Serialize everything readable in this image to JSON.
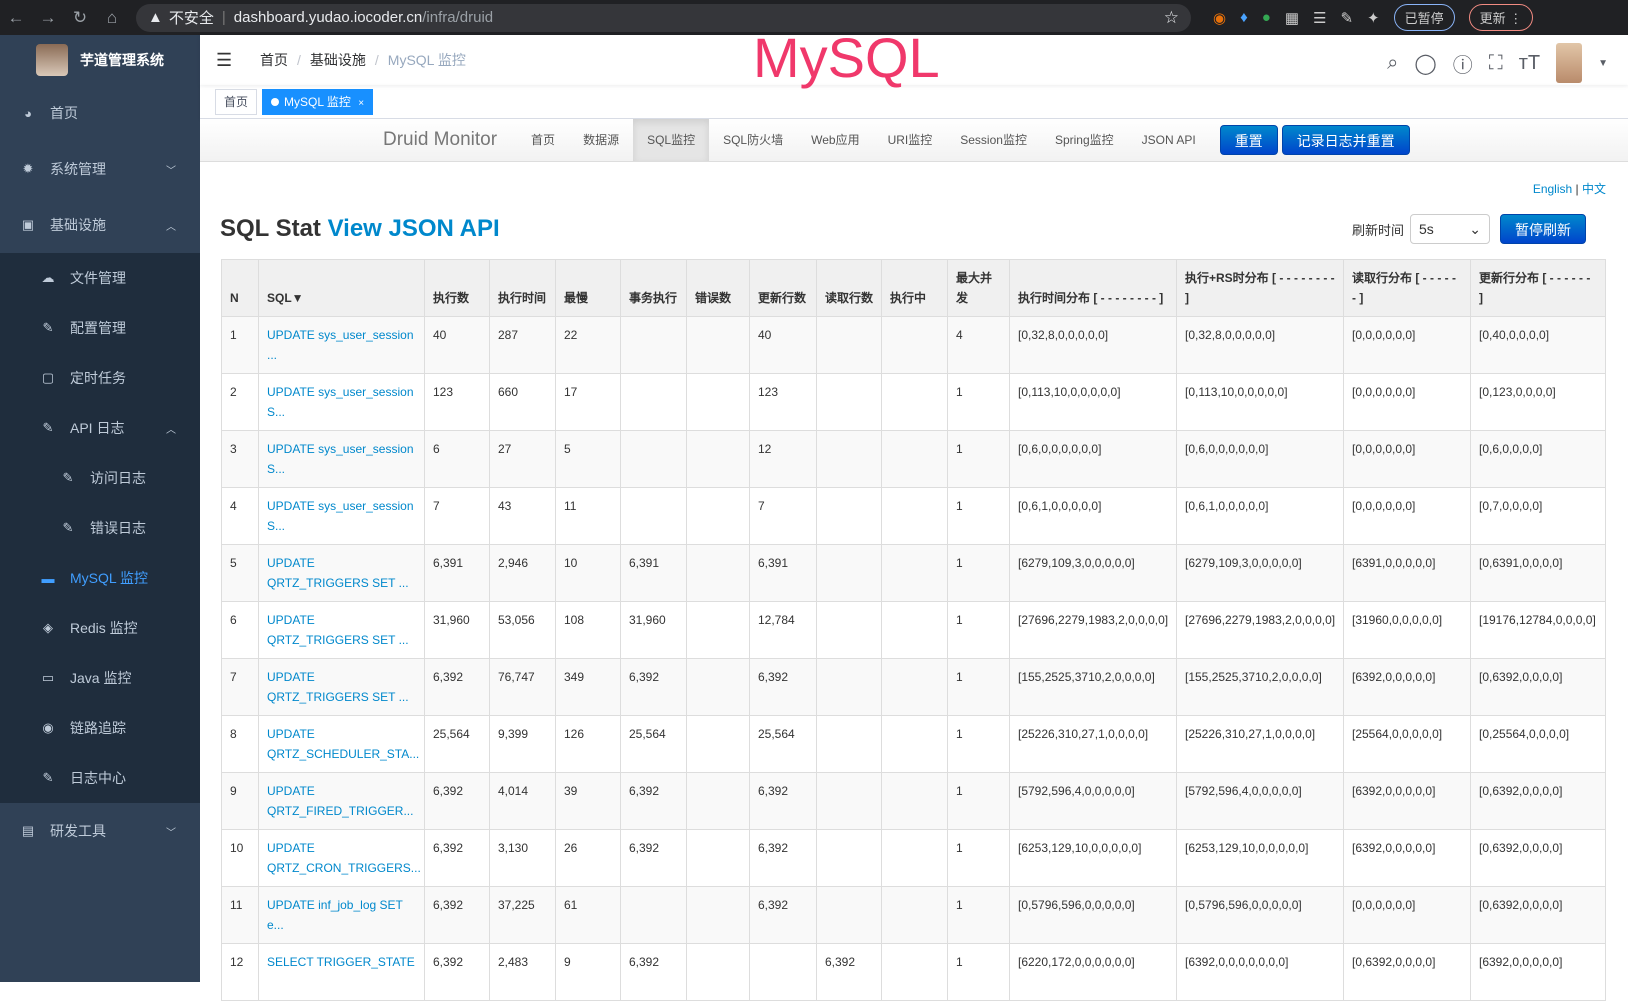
{
  "browser": {
    "insecure": "不安全",
    "url_host": "dashboard.yudao.iocoder.cn",
    "url_path": "/infra/druid",
    "paused": "已暂停",
    "update": "更新"
  },
  "sidebar": {
    "title": "芋道管理系统",
    "items": [
      {
        "label": "首页",
        "icon": "dashboard-icon"
      },
      {
        "label": "系统管理",
        "icon": "gear-icon"
      },
      {
        "label": "基础设施",
        "icon": "monitor-icon"
      },
      {
        "label": "文件管理",
        "icon": "upload-icon"
      },
      {
        "label": "配置管理",
        "icon": "edit-icon"
      },
      {
        "label": "定时任务",
        "icon": "job-icon"
      },
      {
        "label": "API 日志",
        "icon": "log-icon"
      },
      {
        "label": "访问日志",
        "icon": "log-icon"
      },
      {
        "label": "错误日志",
        "icon": "log-icon"
      },
      {
        "label": "MySQL 监控",
        "icon": "database-icon"
      },
      {
        "label": "Redis 监控",
        "icon": "redis-icon"
      },
      {
        "label": "Java 监控",
        "icon": "server-icon"
      },
      {
        "label": "链路追踪",
        "icon": "eye-icon"
      },
      {
        "label": "日志中心",
        "icon": "log-icon"
      },
      {
        "label": "研发工具",
        "icon": "toolbox-icon"
      }
    ]
  },
  "breadcrumb": [
    "首页",
    "基础设施",
    "MySQL 监控"
  ],
  "overlay_title": "MySQL",
  "tags": [
    "首页",
    "MySQL 监控"
  ],
  "druid": {
    "brand": "Druid Monitor",
    "nav": [
      "首页",
      "数据源",
      "SQL监控",
      "SQL防火墙",
      "Web应用",
      "URI监控",
      "Session监控",
      "Spring监控",
      "JSON API"
    ],
    "reset": "重置",
    "log_reset": "记录日志并重置"
  },
  "lang": {
    "en": "English",
    "sep": "|",
    "zh": "中文"
  },
  "heading": {
    "title": "SQL Stat",
    "link": "View JSON API"
  },
  "refresh": {
    "label": "刷新时间",
    "value": "5s",
    "pause": "暂停刷新"
  },
  "table": {
    "headers": [
      "N",
      "SQL▼",
      "执行数",
      "执行时间",
      "最慢",
      "事务执行",
      "错误数",
      "更新行数",
      "读取行数",
      "执行中",
      "最大并发",
      "执行时间分布 [ - - - - - - - - ]",
      "执行+RS时分布 [ - - - - - - - - ]",
      "读取行分布 [ - - - - - - ]",
      "更新行分布 [ - - - - - - ]"
    ],
    "rows": [
      [
        "1",
        "UPDATE sys_user_session ...",
        "40",
        "287",
        "22",
        "",
        "",
        "40",
        "",
        "",
        "4",
        "[0,32,8,0,0,0,0,0]",
        "[0,32,8,0,0,0,0,0]",
        "[0,0,0,0,0,0]",
        "[0,40,0,0,0,0]"
      ],
      [
        "2",
        "UPDATE sys_user_session S...",
        "123",
        "660",
        "17",
        "",
        "",
        "123",
        "",
        "",
        "1",
        "[0,113,10,0,0,0,0,0]",
        "[0,113,10,0,0,0,0,0]",
        "[0,0,0,0,0,0]",
        "[0,123,0,0,0,0]"
      ],
      [
        "3",
        "UPDATE sys_user_session S...",
        "6",
        "27",
        "5",
        "",
        "",
        "12",
        "",
        "",
        "1",
        "[0,6,0,0,0,0,0,0]",
        "[0,6,0,0,0,0,0,0]",
        "[0,0,0,0,0,0]",
        "[0,6,0,0,0,0]"
      ],
      [
        "4",
        "UPDATE sys_user_session S...",
        "7",
        "43",
        "11",
        "",
        "",
        "7",
        "",
        "",
        "1",
        "[0,6,1,0,0,0,0,0]",
        "[0,6,1,0,0,0,0,0]",
        "[0,0,0,0,0,0]",
        "[0,7,0,0,0,0]"
      ],
      [
        "5",
        "UPDATE QRTZ_TRIGGERS SET ...",
        "6,391",
        "2,946",
        "10",
        "6,391",
        "",
        "6,391",
        "",
        "",
        "1",
        "[6279,109,3,0,0,0,0,0]",
        "[6279,109,3,0,0,0,0,0]",
        "[6391,0,0,0,0,0]",
        "[0,6391,0,0,0,0]"
      ],
      [
        "6",
        "UPDATE QRTZ_TRIGGERS SET ...",
        "31,960",
        "53,056",
        "108",
        "31,960",
        "",
        "12,784",
        "",
        "",
        "1",
        "[27696,2279,1983,2,0,0,0,0]",
        "[27696,2279,1983,2,0,0,0,0]",
        "[31960,0,0,0,0,0]",
        "[19176,12784,0,0,0,0]"
      ],
      [
        "7",
        "UPDATE QRTZ_TRIGGERS SET ...",
        "6,392",
        "76,747",
        "349",
        "6,392",
        "",
        "6,392",
        "",
        "",
        "1",
        "[155,2525,3710,2,0,0,0,0]",
        "[155,2525,3710,2,0,0,0,0]",
        "[6392,0,0,0,0,0]",
        "[0,6392,0,0,0,0]"
      ],
      [
        "8",
        "UPDATE QRTZ_SCHEDULER_STA...",
        "25,564",
        "9,399",
        "126",
        "25,564",
        "",
        "25,564",
        "",
        "",
        "1",
        "[25226,310,27,1,0,0,0,0]",
        "[25226,310,27,1,0,0,0,0]",
        "[25564,0,0,0,0,0]",
        "[0,25564,0,0,0,0]"
      ],
      [
        "9",
        "UPDATE QRTZ_FIRED_TRIGGER...",
        "6,392",
        "4,014",
        "39",
        "6,392",
        "",
        "6,392",
        "",
        "",
        "1",
        "[5792,596,4,0,0,0,0,0]",
        "[5792,596,4,0,0,0,0,0]",
        "[6392,0,0,0,0,0]",
        "[0,6392,0,0,0,0]"
      ],
      [
        "10",
        "UPDATE QRTZ_CRON_TRIGGERS...",
        "6,392",
        "3,130",
        "26",
        "6,392",
        "",
        "6,392",
        "",
        "",
        "1",
        "[6253,129,10,0,0,0,0,0]",
        "[6253,129,10,0,0,0,0,0]",
        "[6392,0,0,0,0,0]",
        "[0,6392,0,0,0,0]"
      ],
      [
        "11",
        "UPDATE inf_job_log SET e...",
        "6,392",
        "37,225",
        "61",
        "",
        "",
        "6,392",
        "",
        "",
        "1",
        "[0,5796,596,0,0,0,0,0]",
        "[0,5796,596,0,0,0,0,0]",
        "[0,0,0,0,0,0]",
        "[0,6392,0,0,0,0]"
      ],
      [
        "12",
        "SELECT TRIGGER_STATE",
        "6,392",
        "2,483",
        "9",
        "6,392",
        "",
        "",
        "6,392",
        "",
        "1",
        "[6220,172,0,0,0,0,0,0]",
        "[6392,0,0,0,0,0,0,0]",
        "[0,6392,0,0,0,0]",
        "[6392,0,0,0,0,0]"
      ]
    ]
  },
  "colors": {
    "sidebar_bg": "#304156",
    "active": "#409eff",
    "tag_active": "#1890ff",
    "link": "#0088cc",
    "title_overlay": "#f0386b"
  }
}
